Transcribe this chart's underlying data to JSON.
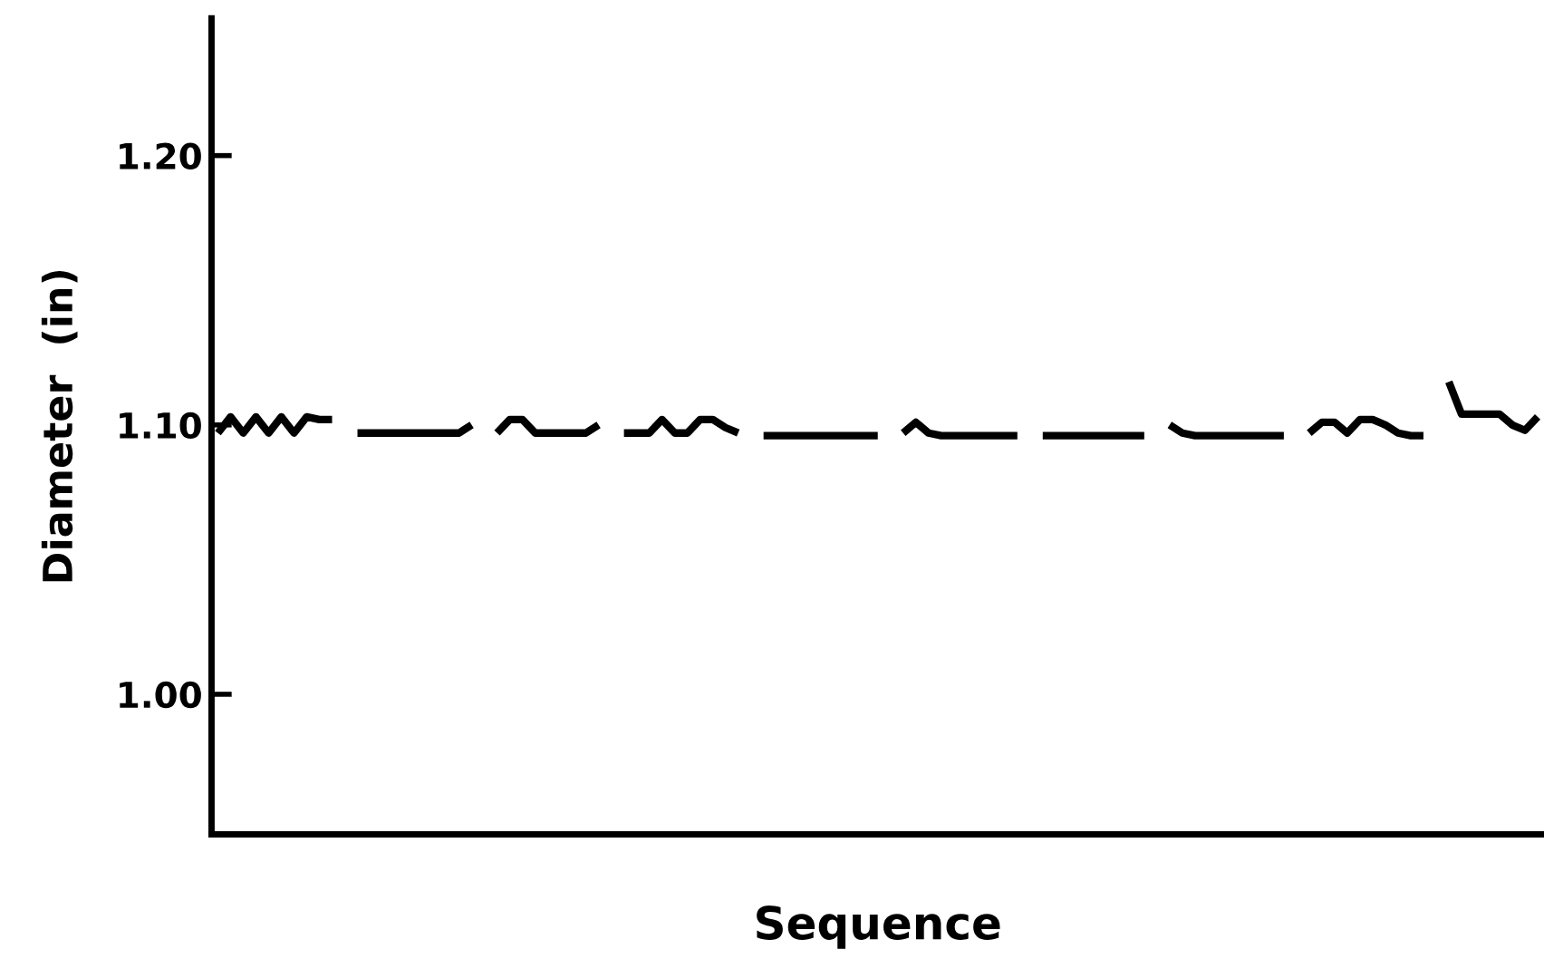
{
  "chart_data": {
    "type": "line",
    "xlabel": "Sequence",
    "ylabel": "Diameter  (in)",
    "categories": [
      null,
      null,
      null,
      null,
      null,
      null,
      null,
      null,
      null,
      null,
      null,
      null,
      null,
      null,
      null,
      null,
      null,
      null,
      null,
      null,
      null,
      null,
      null,
      null,
      null,
      null,
      null,
      null,
      null,
      null,
      null,
      null,
      null,
      null,
      null,
      null,
      null,
      null,
      null,
      null,
      null,
      null,
      null,
      null,
      null,
      null,
      null,
      null,
      null,
      null,
      null,
      null,
      null,
      null,
      null,
      null,
      null,
      null,
      null,
      null,
      null,
      null,
      null,
      null,
      null,
      null,
      null,
      null,
      null,
      null,
      null,
      null,
      null,
      null,
      null,
      null,
      null,
      null,
      null,
      null,
      null,
      null,
      null,
      null,
      null,
      null,
      null,
      null,
      null,
      null,
      null,
      null,
      null,
      null,
      null,
      null,
      null,
      null,
      null,
      null,
      null,
      null,
      null,
      null,
      null
    ],
    "series": [
      {
        "color": "#000000",
        "values": [
          1.097,
          1.103,
          1.097,
          1.103,
          1.097,
          1.103,
          1.097,
          1.103,
          1.102,
          1.102,
          null,
          1.097,
          1.097,
          1.097,
          1.097,
          1.097,
          1.097,
          1.097,
          1.097,
          1.097,
          1.1,
          null,
          1.097,
          1.102,
          1.102,
          1.097,
          1.097,
          1.097,
          1.097,
          1.097,
          1.1,
          null,
          1.097,
          1.097,
          1.097,
          1.102,
          1.097,
          1.097,
          1.102,
          1.102,
          1.099,
          1.097,
          null,
          1.096,
          1.096,
          1.096,
          1.096,
          1.096,
          1.096,
          1.096,
          1.096,
          1.096,
          1.096,
          null,
          1.097,
          1.101,
          1.097,
          1.096,
          1.096,
          1.096,
          1.096,
          1.096,
          1.096,
          1.096,
          null,
          1.096,
          1.096,
          1.096,
          1.096,
          1.096,
          1.096,
          1.096,
          1.096,
          1.096,
          null,
          1.1,
          1.097,
          1.096,
          1.096,
          1.096,
          1.096,
          1.096,
          1.096,
          1.096,
          1.096,
          null,
          1.097,
          1.101,
          1.101,
          1.097,
          1.102,
          1.102,
          1.1,
          1.097,
          1.096,
          1.096,
          null,
          1.116,
          1.104,
          1.104,
          1.104,
          1.104,
          1.1,
          1.098,
          1.103
        ]
      }
    ],
    "ylim": [
      0.948,
      1.251
    ],
    "yticks": [
      {
        "value": 1.0,
        "label": "1.00"
      },
      {
        "value": 1.1,
        "label": "1.10"
      },
      {
        "value": 1.2,
        "label": "1.20"
      }
    ],
    "tick_labels": "y",
    "grid": false,
    "marker": "none",
    "line_style": "solid"
  }
}
